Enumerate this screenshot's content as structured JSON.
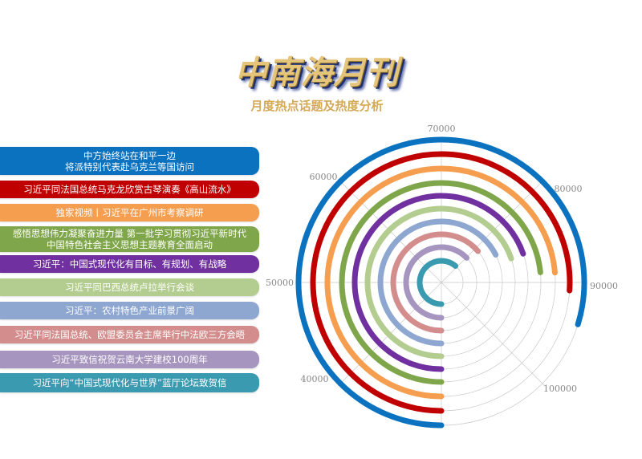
{
  "header": {
    "title": "中南海月刊",
    "subtitle": "月度热点话题及热度分析"
  },
  "chart_data": {
    "type": "radial-bar",
    "categories": [
      "中方始终站在和平一边\n将派特别代表赴乌克兰等国访问",
      "习近平同法国总统马克龙欣赏古琴演奏《高山流水》",
      "独家视频丨习近平在广州市考察调研",
      "感悟思想伟力凝聚奋进力量 第一批学习贯彻习近平新时代\n中国特色社会主义思想主题教育全面启动",
      "习近平：中国式现代化有目标、有规划、有战略",
      "习近平同巴西总统卢拉举行会谈",
      "习近平：农村特色产业前景广阔",
      "习近平同法国总统、欧盟委员会主席举行中法欧三方会晤",
      "习近平致信祝贺云南大学建校100周年",
      "习近平向“中国式现代化与世界”蓝厅论坛致贺信"
    ],
    "values": [
      93800,
      90800,
      88900,
      88700,
      85700,
      85800,
      84000,
      81000,
      80200,
      79000
    ],
    "colors": [
      "#0B72C0",
      "#C00000",
      "#F59E4F",
      "#7FA64A",
      "#7030A0",
      "#B3CC8F",
      "#8EA7D0",
      "#D38D8D",
      "#A695BF",
      "#3A9AB0"
    ],
    "angular_axis": {
      "range": [
        30000,
        110000
      ],
      "start": "bottom",
      "direction": "clockwise",
      "ticks": [
        "40000",
        "50000",
        "60000",
        "70000",
        "80000",
        "90000",
        "100000"
      ]
    },
    "grid": true
  }
}
